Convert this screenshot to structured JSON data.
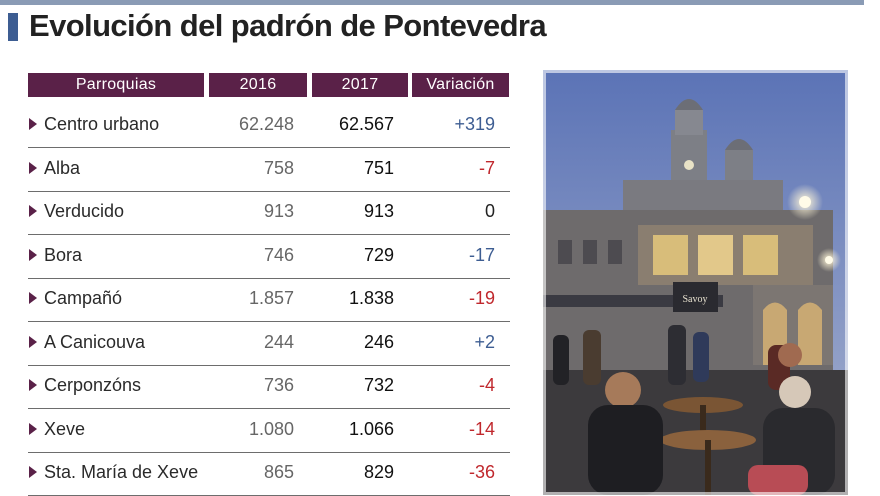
{
  "title": "Evolución del padrón de Pontevedra",
  "chart_data": {
    "type": "table",
    "columns": [
      "Parroquias",
      "2016",
      "2017",
      "Variación"
    ],
    "rows": [
      {
        "parroquia": "Centro urbano",
        "y2016": "62.248",
        "y2017": "62.567",
        "variacion": "+319"
      },
      {
        "parroquia": "Alba",
        "y2016": "758",
        "y2017": "751",
        "variacion": "-7"
      },
      {
        "parroquia": "Verducido",
        "y2016": "913",
        "y2017": "913",
        "variacion": "0"
      },
      {
        "parroquia": "Bora",
        "y2016": "746",
        "y2017": "729",
        "variacion": "-17"
      },
      {
        "parroquia": "Campañó",
        "y2016": "1.857",
        "y2017": "1.838",
        "variacion": "-19"
      },
      {
        "parroquia": "A Canicouva",
        "y2016": "244",
        "y2017": "246",
        "variacion": "+2"
      },
      {
        "parroquia": "Cerponzóns",
        "y2016": "736",
        "y2017": "732",
        "variacion": "-4"
      },
      {
        "parroquia": "Xeve",
        "y2016": "1.080",
        "y2017": "1.066",
        "variacion": "-14"
      },
      {
        "parroquia": "Sta. María de Xeve",
        "y2016": "865",
        "y2017": "829",
        "variacion": "-36"
      }
    ]
  },
  "colors": {
    "header_bg": "#5a2148",
    "title_accent": "#3d5d92",
    "positive": "#3d5d92",
    "negative": "#c0282d",
    "neutral": "#222222"
  },
  "photo": {
    "sign_text": "Savoy"
  }
}
